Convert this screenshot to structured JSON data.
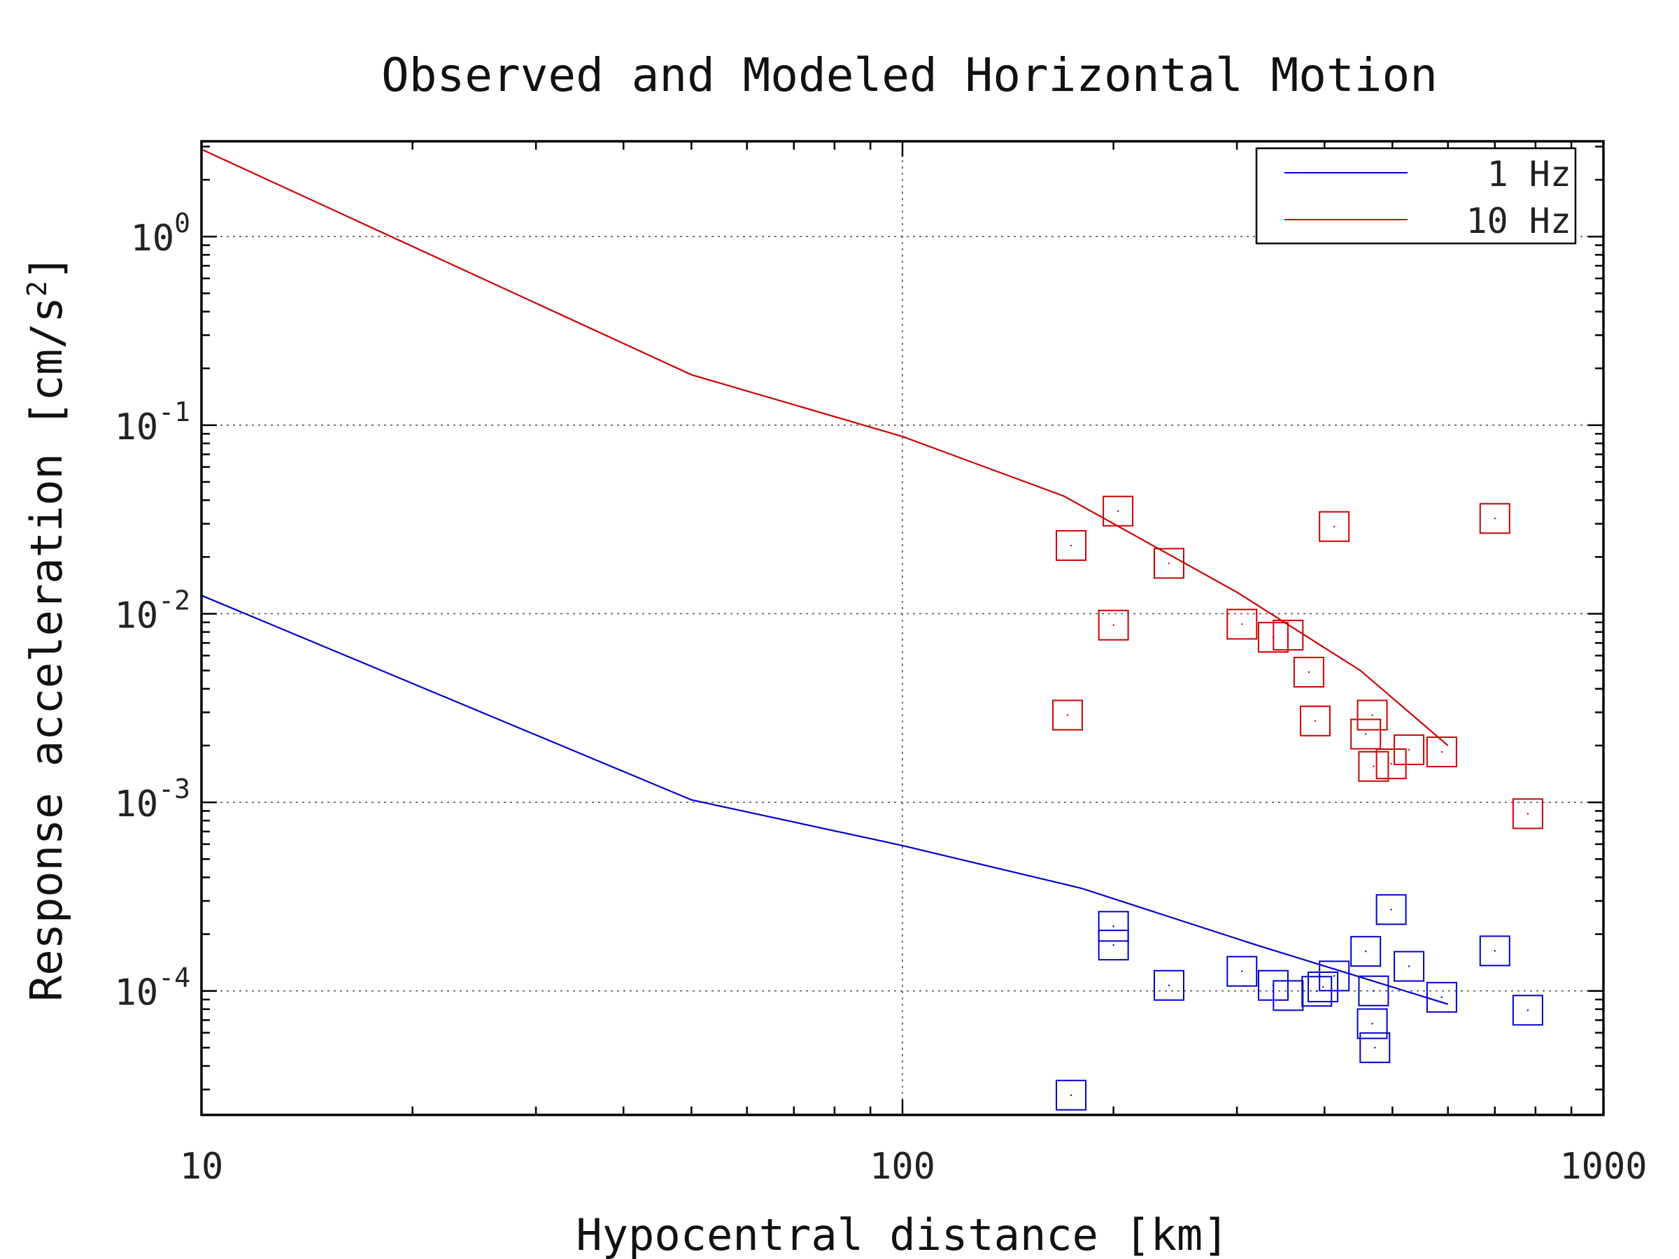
{
  "chart_data": {
    "type": "scatter",
    "title": "Observed and Modeled Horizontal Motion",
    "xlabel": "Hypocentral distance [km]",
    "ylabel": "Response acceleration [cm/s^2]",
    "xscale": "log",
    "yscale": "log",
    "xlim": [
      10,
      1000
    ],
    "ylim": [
      2.2e-05,
      3.2
    ],
    "x_ticks": [
      10,
      100,
      1000
    ],
    "x_tick_labels": [
      "10",
      "100",
      "1000"
    ],
    "y_ticks": [
      1,
      0.1,
      0.01,
      0.001,
      0.0001
    ],
    "y_tick_labels": [
      {
        "base": "10",
        "exp": "0"
      },
      {
        "base": "10",
        "exp": "-1"
      },
      {
        "base": "10",
        "exp": "-2"
      },
      {
        "base": "10",
        "exp": "-3"
      },
      {
        "base": "10",
        "exp": "-4"
      }
    ],
    "grid": true,
    "legend_position": "top-right",
    "series": [
      {
        "name": "1 Hz",
        "color": "#0000cc",
        "model_line": {
          "x": [
            10,
            50,
            100,
            180,
            320,
            600
          ],
          "y": [
            0.0125,
            0.00103,
            0.00059,
            0.00035,
            0.000175,
            8.5e-05
          ]
        },
        "observed": {
          "x": [
            174,
            200,
            200,
            240,
            305,
            338,
            355,
            390,
            398,
            413,
            458,
            468,
            470,
            472,
            498,
            528,
            588,
            700,
            780
          ],
          "y": [
            2.8e-05,
            0.00022,
            0.000175,
            0.000107,
            0.000127,
            0.000107,
            9.45e-05,
            9.95e-05,
            0.000105,
            0.00012,
            0.000162,
            6.7e-05,
            0.0001,
            5e-05,
            0.00027,
            0.000135,
            9.25e-05,
            0.000163,
            7.9e-05
          ]
        }
      },
      {
        "name": "10 Hz",
        "color": "#cc0000",
        "model_line": {
          "x": [
            10,
            50,
            100,
            170,
            300,
            450,
            600
          ],
          "y": [
            2.9,
            0.185,
            0.087,
            0.042,
            0.013,
            0.005,
            0.002
          ]
        },
        "observed": {
          "x": [
            172,
            174,
            200,
            203,
            240,
            305,
            338,
            355,
            380,
            388,
            413,
            458,
            468,
            470,
            498,
            528,
            588,
            700,
            780
          ],
          "y": [
            0.0029,
            0.023,
            0.0087,
            0.035,
            0.0185,
            0.0088,
            0.0075,
            0.0077,
            0.0049,
            0.0027,
            0.029,
            0.0023,
            0.0029,
            0.00155,
            0.0016,
            0.0019,
            0.00185,
            0.032,
            0.00087
          ]
        }
      }
    ]
  }
}
